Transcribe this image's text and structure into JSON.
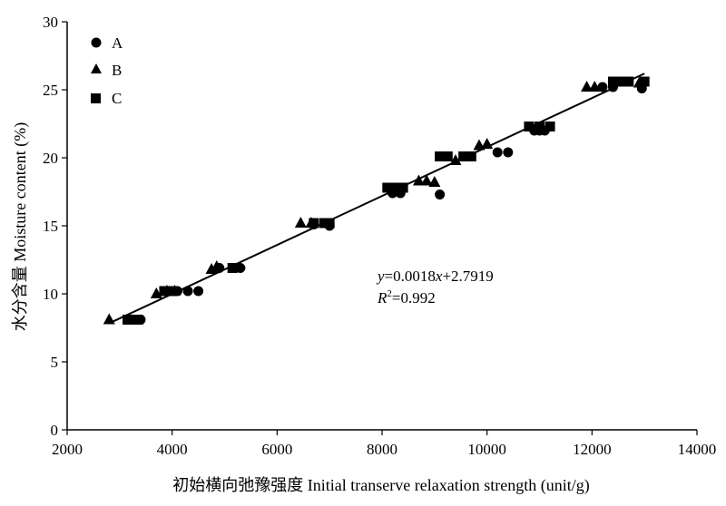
{
  "chart_data": {
    "type": "scatter",
    "xlabel": "初始横向弛豫强度 Initial transerve relaxation strength (unit/g)",
    "ylabel": "水分含量 Moisture content (%)",
    "xlim": [
      2000,
      14000
    ],
    "ylim": [
      0,
      30
    ],
    "xticks": [
      2000,
      4000,
      6000,
      8000,
      10000,
      12000,
      14000
    ],
    "yticks": [
      0,
      5,
      10,
      15,
      20,
      25,
      30
    ],
    "xtick_labels": [
      "2000",
      "4000",
      "6000",
      "8000",
      "10000",
      "12000",
      "14000"
    ],
    "ytick_labels": [
      "0",
      "5",
      "10",
      "15",
      "20",
      "25",
      "30"
    ],
    "grid": false,
    "legend_position": "top-left",
    "series": [
      {
        "name": "A",
        "marker": "circle",
        "color": "#000000",
        "points": [
          [
            3300,
            8.1
          ],
          [
            3400,
            8.1
          ],
          [
            4100,
            10.2
          ],
          [
            4300,
            10.2
          ],
          [
            4500,
            10.2
          ],
          [
            4900,
            11.9
          ],
          [
            5200,
            11.9
          ],
          [
            5300,
            11.9
          ],
          [
            6700,
            15.1
          ],
          [
            7000,
            15.0
          ],
          [
            8200,
            17.4
          ],
          [
            8350,
            17.4
          ],
          [
            9100,
            17.3
          ],
          [
            10200,
            20.4
          ],
          [
            10400,
            20.4
          ],
          [
            10900,
            22.0
          ],
          [
            11000,
            22.0
          ],
          [
            11100,
            22.0
          ],
          [
            12200,
            25.2
          ],
          [
            12400,
            25.2
          ],
          [
            12950,
            25.1
          ]
        ]
      },
      {
        "name": "B",
        "marker": "triangle",
        "color": "#000000",
        "points": [
          [
            2800,
            8.1
          ],
          [
            3700,
            10.0
          ],
          [
            3900,
            10.2
          ],
          [
            4050,
            10.2
          ],
          [
            4750,
            11.8
          ],
          [
            4850,
            12.0
          ],
          [
            6450,
            15.2
          ],
          [
            6650,
            15.2
          ],
          [
            8700,
            18.3
          ],
          [
            8850,
            18.3
          ],
          [
            9000,
            18.2
          ],
          [
            9400,
            19.8
          ],
          [
            9850,
            20.9
          ],
          [
            10000,
            21.0
          ],
          [
            11900,
            25.2
          ],
          [
            12050,
            25.2
          ],
          [
            12900,
            25.5
          ]
        ]
      },
      {
        "name": "C",
        "marker": "square",
        "color": "#000000",
        "points": [
          [
            3150,
            8.1
          ],
          [
            3250,
            8.1
          ],
          [
            3350,
            8.1
          ],
          [
            3850,
            10.2
          ],
          [
            4000,
            10.2
          ],
          [
            5150,
            11.9
          ],
          [
            6700,
            15.2
          ],
          [
            6900,
            15.2
          ],
          [
            7000,
            15.2
          ],
          [
            8100,
            17.8
          ],
          [
            8250,
            17.8
          ],
          [
            8400,
            17.8
          ],
          [
            9100,
            20.1
          ],
          [
            9250,
            20.1
          ],
          [
            9550,
            20.1
          ],
          [
            9700,
            20.1
          ],
          [
            10800,
            22.3
          ],
          [
            11000,
            22.3
          ],
          [
            11200,
            22.3
          ],
          [
            12400,
            25.6
          ],
          [
            12550,
            25.6
          ],
          [
            12700,
            25.6
          ],
          [
            13000,
            25.6
          ]
        ]
      }
    ],
    "fit_line": {
      "slope": 0.0018,
      "intercept": 2.7919,
      "x_range": [
        2800,
        13000
      ]
    },
    "annotation": {
      "equation_y": "y",
      "equation_rest1": "=0.0018",
      "equation_x": "x",
      "equation_rest2": "+2.7919",
      "r2_label": "R",
      "r2_sup": "2",
      "r2_value": "=0.992"
    }
  }
}
